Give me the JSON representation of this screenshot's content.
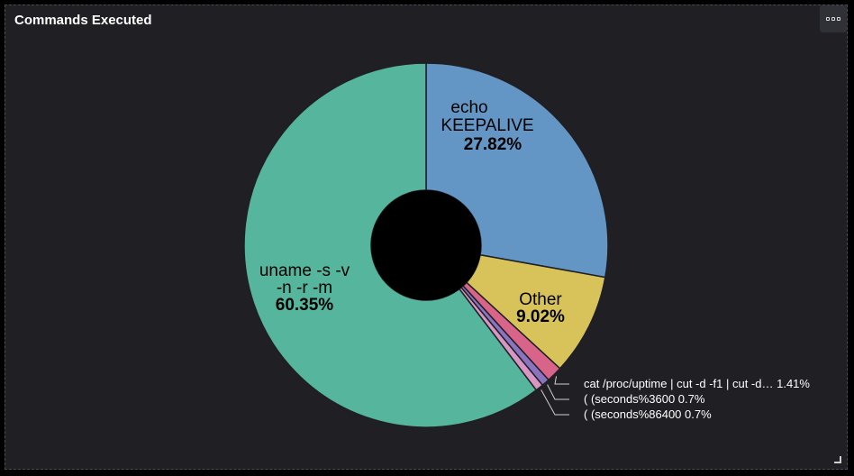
{
  "panel": {
    "title": "Commands Executed",
    "menu_icon": "ellipsis-icon",
    "resize_icon": "resize-corner-icon"
  },
  "chart_data": {
    "type": "pie",
    "donut": true,
    "title": "Commands Executed",
    "slices": [
      {
        "label_lines": [
          "echo",
          "KEEPALIVE"
        ],
        "percent_text": "27.82%",
        "value": 27.82,
        "color": "#6396c5",
        "label_position": "inside"
      },
      {
        "label_lines": [
          "Other"
        ],
        "percent_text": "9.02%",
        "value": 9.02,
        "color": "#d8c35a",
        "label_position": "inside"
      },
      {
        "label_lines": [
          "cat /proc/uptime | cut -d -f1 | cut -d…"
        ],
        "percent_text": "1.41%",
        "value": 1.41,
        "color": "#d9648a",
        "label_position": "outside"
      },
      {
        "label_lines": [
          "( (seconds%3600"
        ],
        "percent_text": "0.7%",
        "value": 0.7,
        "color": "#8a74c0",
        "label_position": "outside"
      },
      {
        "label_lines": [
          "( (seconds%86400"
        ],
        "percent_text": "0.7%",
        "value": 0.7,
        "color": "#d796c3",
        "label_position": "outside"
      },
      {
        "label_lines": [
          "uname -s -v",
          "-n -r -m"
        ],
        "percent_text": "60.35%",
        "value": 60.35,
        "color": "#55b59d",
        "label_position": "inside"
      }
    ]
  }
}
